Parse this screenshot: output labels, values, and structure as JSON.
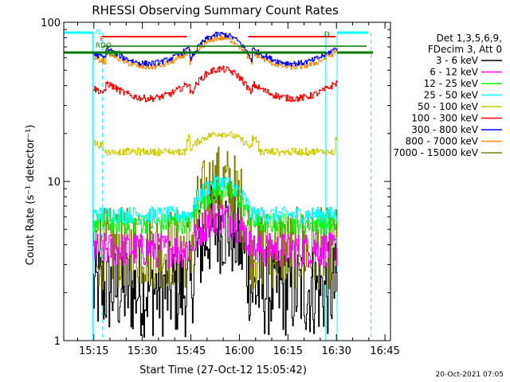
{
  "chart_data": {
    "type": "line",
    "title": "RHESSI Observing Summary Count Rates",
    "xlabel": "Start Time (27-Oct-12 15:05:42)",
    "ylabel": "Count Rate (s⁻¹ detector⁻¹)",
    "yscale": "log",
    "ylim": [
      1,
      100
    ],
    "xlim_minutes": [
      0,
      101
    ],
    "x_ticks": [
      {
        "label": "15:15",
        "min": 9.3
      },
      {
        "label": "15:30",
        "min": 24.3
      },
      {
        "label": "15:45",
        "min": 39.3
      },
      {
        "label": "16:00",
        "min": 54.3
      },
      {
        "label": "16:15",
        "min": 69.3
      },
      {
        "label": "16:30",
        "min": 84.3
      },
      {
        "label": "16:45",
        "min": 99.3
      }
    ],
    "y_ticks": [
      {
        "label": "1",
        "value": 1
      },
      {
        "label": "10",
        "value": 10
      },
      {
        "label": "100",
        "value": 100
      }
    ],
    "legend_header": [
      "Det 1,3,5,6,9,",
      "FDecim 3, Att 0"
    ],
    "legend_placement": "right",
    "series": [
      {
        "name": "3 - 6 keV",
        "color": "#000000",
        "base": 2.1,
        "spread": 0.35,
        "profile": "low"
      },
      {
        "name": "6 - 12 keV",
        "color": "#ff00ff",
        "base": 3.8,
        "spread": 0.25,
        "profile": "mid"
      },
      {
        "name": "12 - 25 keV",
        "color": "#00ff00",
        "base": 5.5,
        "spread": 0.15,
        "profile": "mid"
      },
      {
        "name": "25 - 50 keV",
        "color": "#00ffff",
        "base": 6.2,
        "spread": 0.12,
        "profile": "mid"
      },
      {
        "name": "50 - 100 keV",
        "color": "#cccc00",
        "base": 16,
        "spread": 0.05,
        "profile": "orbit"
      },
      {
        "name": "100 - 300 keV",
        "color": "#ff0000",
        "base": 35,
        "spread": 0.05,
        "profile": "orbit"
      },
      {
        "name": "300 - 800 keV",
        "color": "#0000ff",
        "base": 58,
        "spread": 0.04,
        "profile": "orbit"
      },
      {
        "name": "800 - 7000 keV",
        "color": "#ff8800",
        "base": 55,
        "spread": 0.04,
        "profile": "orbit"
      },
      {
        "name": "7000 - 15000 keV",
        "color": "#808000",
        "base": 3.8,
        "spread": 0.3,
        "profile": "low"
      }
    ],
    "annotations": [
      {
        "text": "N",
        "color": "#00ffff"
      },
      {
        "text": "F",
        "color": "#ff0000"
      },
      {
        "text": "SAA",
        "color": "#ff0000"
      },
      {
        "text": "D",
        "color": "#008800"
      },
      {
        "text": "RDO",
        "color": "#008800"
      },
      {
        "text": "RD6",
        "color": "#008800"
      }
    ],
    "grid": false
  },
  "timestamp": "20-Oct-2021 07:05",
  "colors": {
    "night": "#00ffff",
    "flare": "#ff0000",
    "decimation": "#007700",
    "axis": "#000000"
  }
}
